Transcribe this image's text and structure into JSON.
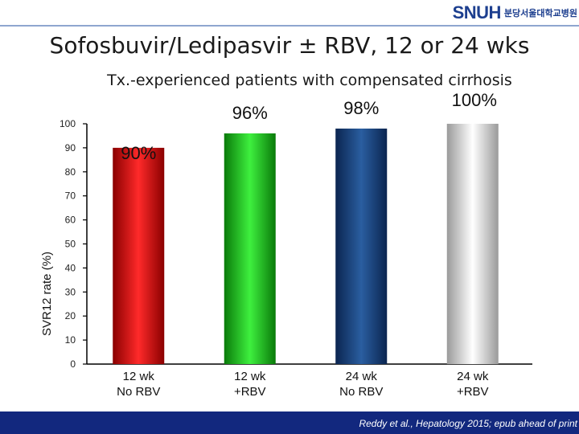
{
  "header": {
    "logo_text": "SNUH",
    "logo_subtext": "분당서울대학교병원",
    "title": "Sofosbuvir/Ledipasvir ± RBV, 12 or 24 wks"
  },
  "footer": {
    "citation": "Reddy et al., Hepatology 2015; epub ahead of print"
  },
  "chart_data": {
    "type": "bar",
    "title": "Tx.-experienced patients with compensated cirrhosis",
    "ylabel": "SVR12 rate (%)",
    "xlabel": "",
    "ylim": [
      0,
      100
    ],
    "yticks": [
      0,
      10,
      20,
      30,
      40,
      50,
      60,
      70,
      80,
      90,
      100
    ],
    "grid": false,
    "categories": [
      [
        "12 wk",
        "No RBV"
      ],
      [
        "12 wk",
        "+RBV"
      ],
      [
        "24 wk",
        "No RBV"
      ],
      [
        "24 wk",
        "+RBV"
      ]
    ],
    "values": [
      90,
      96,
      98,
      100
    ],
    "value_labels": [
      "90%",
      "96%",
      "98%",
      "100%"
    ],
    "colors": [
      "#e01010",
      "#20c020",
      "#1a3f78",
      "#c8c8c8"
    ]
  }
}
